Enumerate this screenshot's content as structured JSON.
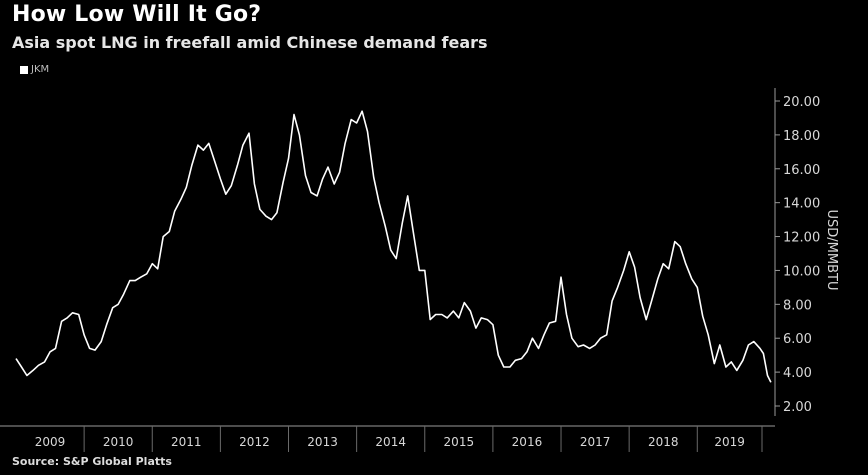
{
  "chart_data": {
    "type": "line",
    "title": "How Low Will It Go?",
    "subtitle": "Asia spot LNG in freefall amid Chinese demand fears",
    "ylabel": "USD/MMBTU",
    "xlabel": "",
    "source": "Source: S&P Global Platts",
    "ylim": [
      2,
      20.5
    ],
    "yticks": [
      "2.00",
      "4.00",
      "6.00",
      "8.00",
      "10.00",
      "12.00",
      "14.00",
      "16.00",
      "18.00",
      "20.00"
    ],
    "ytick_values": [
      2,
      4,
      6,
      8,
      10,
      12,
      14,
      16,
      18,
      20
    ],
    "years": [
      "2009",
      "2010",
      "2011",
      "2012",
      "2013",
      "2014",
      "2015",
      "2016",
      "2017",
      "2018",
      "2019"
    ],
    "x_range": [
      2009.0,
      2019.95
    ],
    "grid": false,
    "legend_position": "top-left",
    "series": [
      {
        "name": "JKM",
        "color": "#ffffff",
        "points": [
          [
            2009.0,
            4.8
          ],
          [
            2009.08,
            4.3
          ],
          [
            2009.16,
            3.8
          ],
          [
            2009.25,
            4.1
          ],
          [
            2009.33,
            4.4
          ],
          [
            2009.42,
            4.6
          ],
          [
            2009.5,
            5.2
          ],
          [
            2009.58,
            5.4
          ],
          [
            2009.67,
            7.0
          ],
          [
            2009.75,
            7.2
          ],
          [
            2009.83,
            7.5
          ],
          [
            2009.92,
            7.4
          ],
          [
            2010.0,
            6.2
          ],
          [
            2010.08,
            5.4
          ],
          [
            2010.16,
            5.3
          ],
          [
            2010.25,
            5.8
          ],
          [
            2010.33,
            6.8
          ],
          [
            2010.42,
            7.8
          ],
          [
            2010.5,
            8.0
          ],
          [
            2010.58,
            8.6
          ],
          [
            2010.67,
            9.4
          ],
          [
            2010.75,
            9.4
          ],
          [
            2010.83,
            9.6
          ],
          [
            2010.92,
            9.8
          ],
          [
            2011.0,
            10.4
          ],
          [
            2011.08,
            10.1
          ],
          [
            2011.16,
            12.0
          ],
          [
            2011.25,
            12.3
          ],
          [
            2011.33,
            13.5
          ],
          [
            2011.42,
            14.2
          ],
          [
            2011.5,
            14.9
          ],
          [
            2011.58,
            16.2
          ],
          [
            2011.67,
            17.4
          ],
          [
            2011.75,
            17.1
          ],
          [
            2011.83,
            17.5
          ],
          [
            2011.92,
            16.4
          ],
          [
            2012.0,
            15.4
          ],
          [
            2012.08,
            14.5
          ],
          [
            2012.16,
            15.0
          ],
          [
            2012.25,
            16.2
          ],
          [
            2012.33,
            17.4
          ],
          [
            2012.42,
            18.1
          ],
          [
            2012.5,
            15.1
          ],
          [
            2012.58,
            13.6
          ],
          [
            2012.67,
            13.2
          ],
          [
            2012.75,
            13.0
          ],
          [
            2012.83,
            13.4
          ],
          [
            2012.92,
            15.2
          ],
          [
            2013.0,
            16.6
          ],
          [
            2013.08,
            19.2
          ],
          [
            2013.16,
            18.0
          ],
          [
            2013.25,
            15.6
          ],
          [
            2013.33,
            14.6
          ],
          [
            2013.42,
            14.4
          ],
          [
            2013.5,
            15.4
          ],
          [
            2013.58,
            16.1
          ],
          [
            2013.67,
            15.1
          ],
          [
            2013.75,
            15.8
          ],
          [
            2013.83,
            17.5
          ],
          [
            2013.92,
            18.9
          ],
          [
            2014.0,
            18.7
          ],
          [
            2014.08,
            19.4
          ],
          [
            2014.16,
            18.2
          ],
          [
            2014.25,
            15.5
          ],
          [
            2014.33,
            14.0
          ],
          [
            2014.42,
            12.6
          ],
          [
            2014.5,
            11.2
          ],
          [
            2014.58,
            10.7
          ],
          [
            2014.67,
            12.8
          ],
          [
            2014.75,
            14.4
          ],
          [
            2014.83,
            12.3
          ],
          [
            2014.92,
            10.0
          ],
          [
            2015.0,
            10.0
          ],
          [
            2015.08,
            7.1
          ],
          [
            2015.16,
            7.4
          ],
          [
            2015.25,
            7.4
          ],
          [
            2015.33,
            7.2
          ],
          [
            2015.42,
            7.6
          ],
          [
            2015.5,
            7.2
          ],
          [
            2015.58,
            8.1
          ],
          [
            2015.67,
            7.6
          ],
          [
            2015.75,
            6.6
          ],
          [
            2015.83,
            7.2
          ],
          [
            2015.92,
            7.1
          ],
          [
            2016.0,
            6.8
          ],
          [
            2016.08,
            5.0
          ],
          [
            2016.16,
            4.3
          ],
          [
            2016.25,
            4.3
          ],
          [
            2016.33,
            4.7
          ],
          [
            2016.42,
            4.8
          ],
          [
            2016.5,
            5.2
          ],
          [
            2016.58,
            6.0
          ],
          [
            2016.67,
            5.4
          ],
          [
            2016.75,
            6.2
          ],
          [
            2016.83,
            6.9
          ],
          [
            2016.92,
            7.0
          ],
          [
            2017.0,
            9.6
          ],
          [
            2017.08,
            7.4
          ],
          [
            2017.16,
            6.0
          ],
          [
            2017.25,
            5.5
          ],
          [
            2017.33,
            5.6
          ],
          [
            2017.42,
            5.4
          ],
          [
            2017.5,
            5.6
          ],
          [
            2017.58,
            6.0
          ],
          [
            2017.67,
            6.2
          ],
          [
            2017.75,
            8.2
          ],
          [
            2017.83,
            9.0
          ],
          [
            2017.92,
            10.0
          ],
          [
            2018.0,
            11.1
          ],
          [
            2018.08,
            10.2
          ],
          [
            2018.16,
            8.4
          ],
          [
            2018.25,
            7.1
          ],
          [
            2018.33,
            8.2
          ],
          [
            2018.42,
            9.5
          ],
          [
            2018.5,
            10.4
          ],
          [
            2018.58,
            10.1
          ],
          [
            2018.67,
            11.7
          ],
          [
            2018.75,
            11.4
          ],
          [
            2018.83,
            10.4
          ],
          [
            2018.92,
            9.5
          ],
          [
            2019.0,
            9.0
          ],
          [
            2019.08,
            7.3
          ],
          [
            2019.16,
            6.2
          ],
          [
            2019.25,
            4.5
          ],
          [
            2019.33,
            5.6
          ],
          [
            2019.42,
            4.3
          ],
          [
            2019.5,
            4.6
          ],
          [
            2019.58,
            4.1
          ],
          [
            2019.67,
            4.7
          ],
          [
            2019.75,
            5.6
          ],
          [
            2019.83,
            5.8
          ],
          [
            2019.92,
            5.4
          ],
          [
            2019.97,
            5.1
          ],
          [
            2020.03,
            3.8
          ],
          [
            2020.08,
            3.4
          ]
        ]
      }
    ]
  }
}
